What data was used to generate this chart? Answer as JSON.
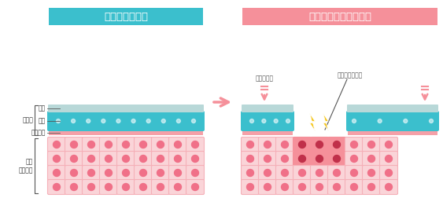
{
  "title_left": "正常な目の表面",
  "title_right": "ドライアイの目の表面",
  "title_left_color": "#3bbfcd",
  "title_right_color": "#f5909a",
  "label_tear_film": "涙液層",
  "label_lipid": "油層",
  "label_aqueous": "水層",
  "label_mucin": "ムチン層",
  "label_cornea": "目の\n表面細胞",
  "label_tears_decreased": "涙量の減少",
  "label_dry_spot": "ドライスポット",
  "bg_color": "#ffffff",
  "cell_fill": "#fad4d8",
  "cell_stroke": "#f5b0b8",
  "cell_nucleus": "#f07088",
  "dry_cell_fill": "#f5909a",
  "dry_cell_nucleus": "#c0304a",
  "lipid_color": "#b8d8d8",
  "aqueous_color": "#3bbfcd",
  "mucin_color": "#f5a0a8",
  "arrow_color": "#f5909a",
  "lightning_color": "#f5c518"
}
